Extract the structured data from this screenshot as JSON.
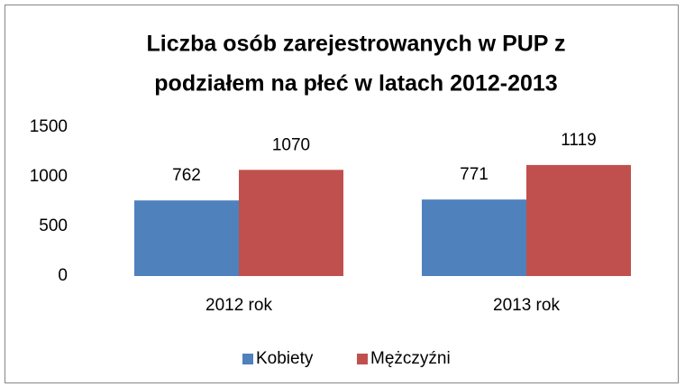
{
  "chart_data": {
    "type": "bar",
    "title": [
      "Liczba osób zarejestrowanych w PUP z",
      "podziałem na płeć  w latach 2012-2013"
    ],
    "categories": [
      "2012 rok",
      "2013 rok"
    ],
    "series": [
      {
        "name": "Kobiety",
        "color": "#4f81bd",
        "values": [
          762,
          771
        ]
      },
      {
        "name": "Mężczyźni",
        "color": "#c0504d",
        "values": [
          1070,
          1119
        ]
      }
    ],
    "ylim": [
      0,
      1500
    ],
    "yticks": [
      0,
      500,
      1000,
      1500
    ],
    "grid": false,
    "legend": "bottom"
  }
}
